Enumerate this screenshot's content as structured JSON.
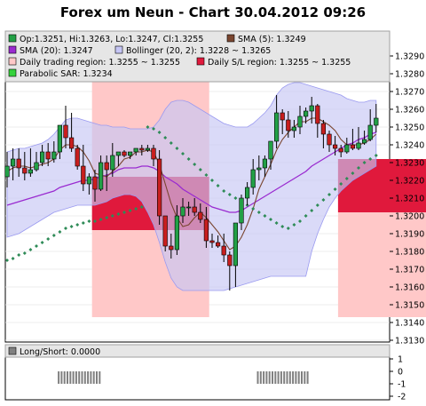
{
  "chart_data": {
    "type": "candlestick",
    "title": "Forex um Neun - Chart 30.04.2012 09:26",
    "price_axis": {
      "ylim": [
        1.313,
        1.329
      ],
      "ticks": [
        "1.3290",
        "1.3280",
        "1.3270",
        "1.3260",
        "1.3250",
        "1.3240",
        "1.3230",
        "1.3220",
        "1.3210",
        "1.3200",
        "1.3190",
        "1.3180",
        "1.3170",
        "1.3160",
        "1.3150",
        "1.3140",
        "1.3130"
      ]
    },
    "legend": {
      "ohlc": "Op:1.3251, Hi:1.3263, Lo:1.3247, Cl:1.3255",
      "sma5": "SMA (5): 1.3249",
      "sma20": "SMA (20): 1.3247",
      "bollinger": "Bollinger (20, 2): 1.3228 ~ 1.3265",
      "daily_trading_region": "Daily trading region: 1.3255 ~ 1.3255",
      "daily_sl_region": "Daily S/L region: 1.3255 ~ 1.3255",
      "parabolic_sar": "Parabolic SAR: 1.3234"
    },
    "colors": {
      "bull": "#22a046",
      "bear": "#c81e1e",
      "sma5": "#7a4630",
      "sma20": "#9a2bd0",
      "bollinger_fill": "#c6c6f5",
      "bollinger_line": "#9a9af0",
      "trading_region": "#ffc8c8",
      "sl_region": "#e0193c",
      "sar": "#2e8b57",
      "longshort": "#808080"
    },
    "candles": {
      "open": [
        1.3222,
        1.3228,
        1.3232,
        1.3227,
        1.3224,
        1.3226,
        1.323,
        1.3236,
        1.3232,
        1.3236,
        1.3251,
        1.3244,
        1.3238,
        1.3228,
        1.3218,
        1.3222,
        1.3215,
        1.323,
        1.3226,
        1.3234,
        1.3236,
        1.3234,
        1.3236,
        1.3238,
        1.3237,
        1.3238,
        1.3232,
        1.32,
        1.3183,
        1.3181,
        1.32,
        1.3205,
        1.3205,
        1.3202,
        1.3198,
        1.3186,
        1.3185,
        1.3183,
        1.3178,
        1.3172,
        1.3196,
        1.321,
        1.3216,
        1.3226,
        1.3227,
        1.3232,
        1.3242,
        1.3258,
        1.3254,
        1.3248,
        1.325,
        1.3256,
        1.3259,
        1.3262,
        1.3252,
        1.3246,
        1.324,
        1.3238,
        1.3236,
        1.324,
        1.3238,
        1.3241,
        1.3243,
        1.3251
      ],
      "high": [
        1.3236,
        1.3238,
        1.3238,
        1.3236,
        1.3238,
        1.3236,
        1.324,
        1.3241,
        1.3242,
        1.3246,
        1.3262,
        1.3258,
        1.324,
        1.324,
        1.3224,
        1.3226,
        1.3234,
        1.3234,
        1.3241,
        1.3236,
        1.3237,
        1.3236,
        1.3238,
        1.324,
        1.324,
        1.324,
        1.3237,
        1.32,
        1.319,
        1.3206,
        1.321,
        1.3208,
        1.321,
        1.3207,
        1.3205,
        1.319,
        1.3189,
        1.319,
        1.318,
        1.318,
        1.3212,
        1.3219,
        1.3232,
        1.3234,
        1.3234,
        1.324,
        1.3268,
        1.326,
        1.3259,
        1.3254,
        1.3262,
        1.3261,
        1.3267,
        1.3263,
        1.3254,
        1.3248,
        1.3245,
        1.324,
        1.3244,
        1.3249,
        1.325,
        1.3248,
        1.326,
        1.3263
      ],
      "low": [
        1.3216,
        1.322,
        1.3222,
        1.322,
        1.3222,
        1.3225,
        1.3228,
        1.3228,
        1.323,
        1.3232,
        1.3238,
        1.3236,
        1.3226,
        1.3214,
        1.3212,
        1.3208,
        1.3214,
        1.3214,
        1.3222,
        1.3228,
        1.3233,
        1.3232,
        1.3234,
        1.3234,
        1.3236,
        1.3228,
        1.3195,
        1.318,
        1.3176,
        1.3178,
        1.3196,
        1.32,
        1.32,
        1.3196,
        1.3182,
        1.3182,
        1.3182,
        1.3174,
        1.3158,
        1.316,
        1.3192,
        1.3206,
        1.3212,
        1.322,
        1.3222,
        1.3226,
        1.3238,
        1.3246,
        1.3244,
        1.3244,
        1.3246,
        1.3252,
        1.3252,
        1.3244,
        1.3238,
        1.3236,
        1.3234,
        1.3233,
        1.3235,
        1.3237,
        1.3237,
        1.324,
        1.3242,
        1.3247
      ],
      "close": [
        1.3228,
        1.3232,
        1.3227,
        1.3224,
        1.3226,
        1.323,
        1.3236,
        1.3232,
        1.3236,
        1.3251,
        1.3244,
        1.3238,
        1.3228,
        1.3218,
        1.3222,
        1.3215,
        1.323,
        1.3226,
        1.3234,
        1.3236,
        1.3234,
        1.3236,
        1.3238,
        1.3237,
        1.3238,
        1.3232,
        1.32,
        1.3183,
        1.3181,
        1.32,
        1.3205,
        1.3205,
        1.3202,
        1.3198,
        1.3186,
        1.3185,
        1.3183,
        1.3178,
        1.3172,
        1.3196,
        1.321,
        1.3216,
        1.3226,
        1.3227,
        1.3232,
        1.3242,
        1.3258,
        1.3254,
        1.3248,
        1.325,
        1.3256,
        1.3259,
        1.3262,
        1.3252,
        1.3246,
        1.324,
        1.3238,
        1.3236,
        1.324,
        1.3238,
        1.3241,
        1.3243,
        1.3251,
        1.3255
      ]
    },
    "sma5": [
      1.3225,
      1.3227,
      1.3228,
      1.3228,
      1.3227,
      1.3228,
      1.3229,
      1.323,
      1.3232,
      1.3237,
      1.324,
      1.324,
      1.3239,
      1.3236,
      1.3231,
      1.3224,
      1.3223,
      1.3222,
      1.3225,
      1.3228,
      1.3232,
      1.3233,
      1.3236,
      1.3236,
      1.3237,
      1.3236,
      1.3229,
      1.3218,
      1.3207,
      1.3199,
      1.3194,
      1.3195,
      1.3199,
      1.3202,
      1.3199,
      1.3195,
      1.3191,
      1.3186,
      1.3181,
      1.3183,
      1.3188,
      1.3195,
      1.3204,
      1.3215,
      1.3222,
      1.3229,
      1.3237,
      1.3243,
      1.3247,
      1.325,
      1.3253,
      1.3253,
      1.3255,
      1.3255,
      1.3253,
      1.3251,
      1.3248,
      1.3243,
      1.324,
      1.324,
      1.324,
      1.3241,
      1.3243,
      1.3246
    ],
    "sma20": [
      1.3206,
      1.3207,
      1.3208,
      1.3209,
      1.321,
      1.3211,
      1.3212,
      1.3213,
      1.3214,
      1.3216,
      1.3217,
      1.3218,
      1.3219,
      1.322,
      1.322,
      1.3221,
      1.3222,
      1.3223,
      1.3224,
      1.3226,
      1.3227,
      1.3227,
      1.3227,
      1.3228,
      1.3228,
      1.3227,
      1.3225,
      1.3222,
      1.322,
      1.3218,
      1.3215,
      1.3213,
      1.3211,
      1.3209,
      1.3207,
      1.3205,
      1.3204,
      1.3203,
      1.3202,
      1.3202,
      1.3203,
      1.3205,
      1.3207,
      1.3209,
      1.3211,
      1.3213,
      1.3215,
      1.3217,
      1.3219,
      1.3221,
      1.3223,
      1.3225,
      1.3228,
      1.323,
      1.3232,
      1.3234,
      1.3236,
      1.3238,
      1.324,
      1.3241,
      1.3243,
      1.3244,
      1.3246,
      1.3247
    ],
    "bollinger_upper": [
      1.3236,
      1.3237,
      1.3238,
      1.3238,
      1.3239,
      1.324,
      1.3241,
      1.3243,
      1.3246,
      1.325,
      1.3254,
      1.3255,
      1.3255,
      1.3254,
      1.3253,
      1.3252,
      1.3251,
      1.3251,
      1.325,
      1.325,
      1.325,
      1.3249,
      1.3249,
      1.3249,
      1.3249,
      1.325,
      1.3254,
      1.326,
      1.3264,
      1.3265,
      1.3265,
      1.3264,
      1.3262,
      1.326,
      1.3258,
      1.3256,
      1.3254,
      1.3252,
      1.3251,
      1.325,
      1.325,
      1.325,
      1.3252,
      1.3255,
      1.3258,
      1.3262,
      1.3268,
      1.3272,
      1.3274,
      1.3275,
      1.3275,
      1.3274,
      1.3273,
      1.3272,
      1.3271,
      1.327,
      1.3269,
      1.3268,
      1.3266,
      1.3265,
      1.3264,
      1.3264,
      1.3265,
      1.3265
    ],
    "bollinger_lower": [
      1.3188,
      1.3189,
      1.319,
      1.3192,
      1.3194,
      1.3196,
      1.3198,
      1.32,
      1.3202,
      1.3203,
      1.3204,
      1.3205,
      1.3206,
      1.3206,
      1.3206,
      1.3206,
      1.3207,
      1.3208,
      1.321,
      1.3211,
      1.3212,
      1.3212,
      1.3211,
      1.3208,
      1.3202,
      1.3195,
      1.3185,
      1.3174,
      1.3165,
      1.316,
      1.3158,
      1.3158,
      1.3158,
      1.3158,
      1.3158,
      1.3158,
      1.3158,
      1.3158,
      1.3159,
      1.316,
      1.3161,
      1.3162,
      1.3163,
      1.3164,
      1.3165,
      1.3166,
      1.3166,
      1.3166,
      1.3166,
      1.3166,
      1.3166,
      1.3166,
      1.318,
      1.319,
      1.3198,
      1.3205,
      1.321,
      1.3214,
      1.3217,
      1.322,
      1.3222,
      1.3224,
      1.3226,
      1.3228
    ],
    "parabolic_sar": [
      1.3175,
      1.3176,
      1.3178,
      1.3179,
      1.3181,
      1.3183,
      1.3185,
      1.3187,
      1.3189,
      1.3191,
      1.3193,
      1.3194,
      1.3195,
      1.3196,
      1.3197,
      1.3197,
      1.3198,
      1.3199,
      1.32,
      1.3201,
      1.3202,
      1.3203,
      1.3204,
      1.3205,
      1.325,
      1.3249,
      1.3247,
      1.3244,
      1.3241,
      1.3238,
      1.3235,
      1.3232,
      1.3229,
      1.3226,
      1.3223,
      1.322,
      1.3217,
      1.3214,
      1.3212,
      1.321,
      1.3208,
      1.3206,
      1.3204,
      1.3202,
      1.32,
      1.3198,
      1.3196,
      1.3194,
      1.3193,
      1.3195,
      1.3197,
      1.32,
      1.3203,
      1.3206,
      1.3209,
      1.3212,
      1.3215,
      1.3218,
      1.3221,
      1.3224,
      1.3227,
      1.323,
      1.3232,
      1.3234
    ],
    "regions": [
      {
        "kind": "trading",
        "from": 15,
        "to": 34,
        "low": 1.3143,
        "high": 1.328
      },
      {
        "kind": "sl",
        "from": 15,
        "to": 34,
        "low": 1.3192,
        "high": 1.3222
      },
      {
        "kind": "trading",
        "from": 57,
        "to": 78,
        "low": 1.3143,
        "high": 1.3232
      },
      {
        "kind": "sl",
        "from": 57,
        "to": 78,
        "low": 1.3202,
        "high": 1.3232
      }
    ],
    "longshort": {
      "label": "Long/Short: 0.0000",
      "ylim": [
        -2,
        1
      ],
      "ticks": [
        "1",
        "0",
        "-1",
        "-2"
      ],
      "values": [
        0,
        0,
        0,
        0,
        0,
        0,
        0,
        0,
        0,
        0,
        0,
        0,
        0,
        0,
        0,
        0,
        0,
        -1,
        -1,
        -1,
        -1,
        -1,
        -1,
        -1,
        -1,
        -1,
        -1,
        -1,
        -1,
        -1,
        -1,
        -1,
        0,
        0,
        0,
        0,
        0,
        0,
        0,
        0,
        0,
        0,
        0,
        0,
        0,
        0,
        0,
        0,
        0,
        0,
        0,
        0,
        0,
        0,
        0,
        0,
        0,
        0,
        0,
        0,
        0,
        0,
        0,
        0,
        0,
        0,
        0,
        0,
        0,
        0,
        0,
        0,
        0,
        0,
        0,
        0,
        0,
        0,
        0,
        0,
        0,
        0,
        0,
        0,
        0,
        -1,
        -1,
        -1,
        -1,
        -1,
        -1,
        -1,
        -1,
        -1,
        -1,
        -1,
        -1,
        -1,
        -1,
        -1,
        -1,
        -1,
        -1,
        0,
        0,
        0,
        0,
        0,
        0,
        0,
        0,
        0,
        0,
        0,
        0,
        0,
        0,
        0,
        0,
        0,
        0
      ]
    }
  }
}
